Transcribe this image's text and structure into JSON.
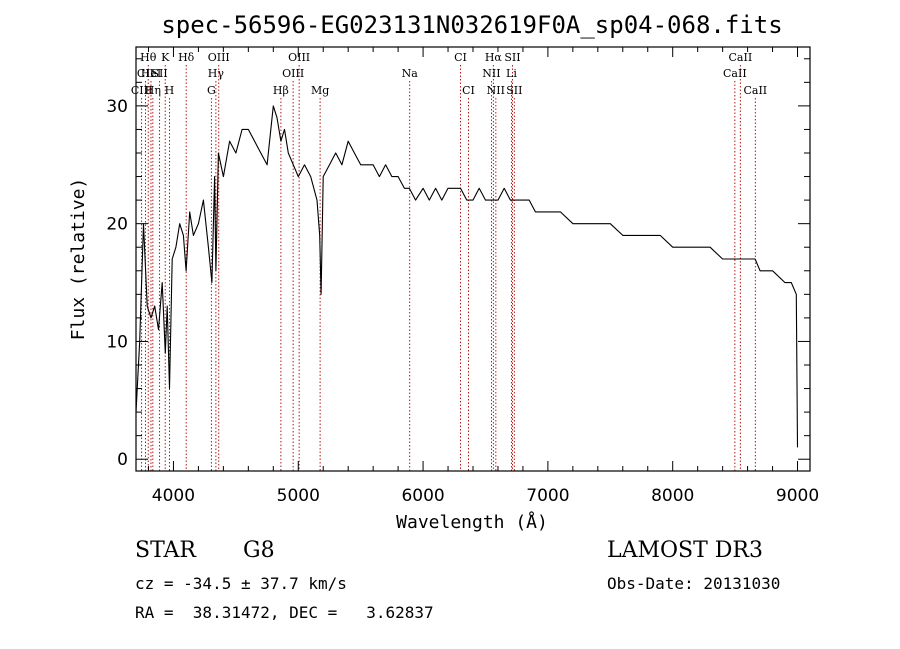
{
  "chart_data": {
    "type": "line",
    "title": "spec-56596-EG023131N032619F0A_sp04-068.fits",
    "xlabel": "Wavelength (Å)",
    "ylabel": "Flux (relative)",
    "xlim": [
      3700,
      9100
    ],
    "ylim": [
      -1,
      35
    ],
    "x_ticks": [
      "4000",
      "5000",
      "6000",
      "7000",
      "8000",
      "9000"
    ],
    "x_tick_values": [
      4000,
      5000,
      6000,
      7000,
      8000,
      9000
    ],
    "y_ticks": [
      "0",
      "10",
      "20",
      "30"
    ],
    "y_tick_values": [
      0,
      10,
      20,
      30
    ],
    "grid": false,
    "series": [
      {
        "x": [
          3700,
          3730,
          3760,
          3790,
          3820,
          3850,
          3880,
          3910,
          3935,
          3950,
          3968,
          3990,
          4020,
          4050,
          4080,
          4101,
          4130,
          4160,
          4200,
          4240,
          4280,
          4308,
          4330,
          4340,
          4360,
          4400,
          4450,
          4500,
          4550,
          4600,
          4650,
          4700,
          4750,
          4800,
          4830,
          4861,
          4890,
          4920,
          4960,
          5000,
          5050,
          5100,
          5150,
          5172,
          5183,
          5200,
          5250,
          5300,
          5350,
          5400,
          5450,
          5500,
          5550,
          5600,
          5650,
          5700,
          5750,
          5800,
          5850,
          5890,
          5940,
          6000,
          6050,
          6100,
          6150,
          6200,
          6250,
          6300,
          6350,
          6400,
          6450,
          6500,
          6563,
          6600,
          6650,
          6700,
          6750,
          6800,
          6850,
          6900,
          7000,
          7100,
          7200,
          7300,
          7400,
          7500,
          7600,
          7700,
          7800,
          7900,
          8000,
          8100,
          8200,
          8300,
          8400,
          8500,
          8540,
          8600,
          8660,
          8700,
          8800,
          8900,
          8950,
          8990,
          9000
        ],
        "y": [
          4,
          10,
          20,
          13,
          12,
          13,
          11,
          15,
          9,
          13,
          6,
          17,
          18,
          20,
          19,
          16,
          21,
          19,
          20,
          22,
          18,
          15,
          24,
          16,
          26,
          24,
          27,
          26,
          28,
          28,
          27,
          26,
          25,
          30,
          29,
          27,
          28,
          26,
          25,
          24,
          25,
          24,
          22,
          19,
          14,
          24,
          25,
          26,
          25,
          27,
          26,
          25,
          25,
          25,
          24,
          25,
          24,
          24,
          23,
          23,
          22,
          23,
          22,
          23,
          22,
          23,
          23,
          23,
          22,
          22,
          23,
          22,
          22,
          22,
          23,
          22,
          22,
          22,
          22,
          21,
          21,
          21,
          20,
          20,
          20,
          20,
          19,
          19,
          19,
          19,
          18,
          18,
          18,
          18,
          17,
          17,
          17,
          17,
          17,
          16,
          16,
          15,
          15,
          14,
          1
        ]
      }
    ],
    "line_ids": [
      {
        "label": "Hθ",
        "x": 3798,
        "row": 0
      },
      {
        "label": "CII",
        "x": 3776,
        "row": 1
      },
      {
        "label": "CIII",
        "x": 3745,
        "row": 2
      },
      {
        "label": "HeI",
        "x": 3820,
        "row": 1
      },
      {
        "label": "Hη",
        "x": 3835,
        "row": 2
      },
      {
        "label": "K",
        "x": 3934,
        "row": 0
      },
      {
        "label": "SII",
        "x": 3889,
        "row": 1
      },
      {
        "label": "H",
        "x": 3968,
        "row": 2
      },
      {
        "label": "Hδ",
        "x": 4102,
        "row": 0
      },
      {
        "label": "OIII",
        "x": 4363,
        "row": 0
      },
      {
        "label": "Hγ",
        "x": 4340,
        "row": 1
      },
      {
        "label": "G",
        "x": 4304,
        "row": 2
      },
      {
        "label": "Hβ",
        "x": 4861,
        "row": 2
      },
      {
        "label": "OIII",
        "x": 5007,
        "row": 0
      },
      {
        "label": "OIII",
        "x": 4959,
        "row": 1
      },
      {
        "label": "Mg",
        "x": 5175,
        "row": 2
      },
      {
        "label": "Na",
        "x": 5893,
        "row": 1
      },
      {
        "label": "CI",
        "x": 6300,
        "row": 0
      },
      {
        "label": "CI",
        "x": 6364,
        "row": 2
      },
      {
        "label": "Hα",
        "x": 6563,
        "row": 0
      },
      {
        "label": "NII",
        "x": 6548,
        "row": 1
      },
      {
        "label": "NII",
        "x": 6583,
        "row": 2
      },
      {
        "label": "SII",
        "x": 6716,
        "row": 0
      },
      {
        "label": "Li",
        "x": 6708,
        "row": 1
      },
      {
        "label": "SII",
        "x": 6731,
        "row": 2
      },
      {
        "label": "CaII",
        "x": 8542,
        "row": 0
      },
      {
        "label": "CaII",
        "x": 8498,
        "row": 1
      },
      {
        "label": "CaII",
        "x": 8662,
        "row": 2
      }
    ]
  },
  "info": {
    "object_class": "STAR",
    "subclass": "G8",
    "survey": "LAMOST DR3",
    "redshift": "cz = -34.5 ± 37.7 km/s",
    "obs_date": "Obs-Date: 20131030",
    "coords": "RA =  38.31472, DEC =   3.62837"
  }
}
